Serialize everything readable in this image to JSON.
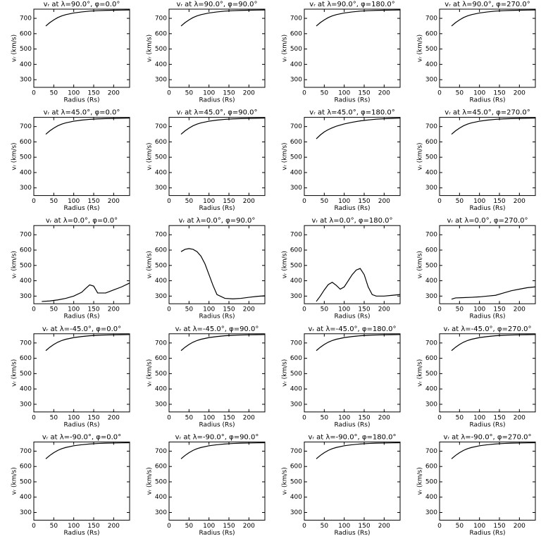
{
  "chart_data": [
    {
      "type": "line",
      "title": "vᵣ at λ=90.0°, φ=0.0°",
      "xlabel": "Radius (Rs)",
      "ylabel": "vᵣ (km/s)",
      "xlim": [
        0,
        240
      ],
      "ylim": [
        250,
        760
      ],
      "xticks": [
        0,
        50,
        100,
        150,
        200
      ],
      "yticks": [
        300,
        400,
        500,
        600,
        700
      ],
      "color": "#000000",
      "x": [
        30,
        40,
        50,
        60,
        70,
        80,
        100,
        120,
        140,
        160,
        180,
        200,
        220,
        240
      ],
      "values": [
        650,
        672,
        690,
        705,
        716,
        724,
        735,
        742,
        747,
        750,
        752,
        753,
        754,
        755
      ]
    },
    {
      "type": "line",
      "title": "vᵣ at λ=90.0°, φ=90.0°",
      "xlabel": "Radius (Rs)",
      "ylabel": "vᵣ (km/s)",
      "xlim": [
        0,
        240
      ],
      "ylim": [
        250,
        760
      ],
      "xticks": [
        0,
        50,
        100,
        150,
        200
      ],
      "yticks": [
        300,
        400,
        500,
        600,
        700
      ],
      "color": "#000000",
      "x": [
        30,
        40,
        50,
        60,
        70,
        80,
        100,
        120,
        140,
        160,
        180,
        200,
        220,
        240
      ],
      "values": [
        650,
        672,
        690,
        705,
        716,
        724,
        735,
        742,
        747,
        750,
        752,
        753,
        754,
        755
      ]
    },
    {
      "type": "line",
      "title": "vᵣ at λ=90.0°, φ=180.0°",
      "xlabel": "Radius (Rs)",
      "ylabel": "vᵣ (km/s)",
      "xlim": [
        0,
        240
      ],
      "ylim": [
        250,
        760
      ],
      "xticks": [
        0,
        50,
        100,
        150,
        200
      ],
      "yticks": [
        300,
        400,
        500,
        600,
        700
      ],
      "color": "#000000",
      "x": [
        30,
        40,
        50,
        60,
        70,
        80,
        100,
        120,
        140,
        160,
        180,
        200,
        220,
        240
      ],
      "values": [
        650,
        672,
        690,
        705,
        716,
        724,
        735,
        742,
        747,
        750,
        752,
        753,
        754,
        755
      ]
    },
    {
      "type": "line",
      "title": "vᵣ at λ=90.0°, φ=270.0°",
      "xlabel": "Radius (Rs)",
      "ylabel": "vᵣ (km/s)",
      "xlim": [
        0,
        240
      ],
      "ylim": [
        250,
        760
      ],
      "xticks": [
        0,
        50,
        100,
        150,
        200
      ],
      "yticks": [
        300,
        400,
        500,
        600,
        700
      ],
      "color": "#000000",
      "x": [
        30,
        40,
        50,
        60,
        70,
        80,
        100,
        120,
        140,
        160,
        180,
        200,
        220,
        240
      ],
      "values": [
        650,
        672,
        690,
        705,
        716,
        724,
        735,
        742,
        747,
        750,
        752,
        753,
        754,
        755
      ]
    },
    {
      "type": "line",
      "title": "vᵣ at λ=45.0°, φ=0.0°",
      "xlabel": "Radius (Rs)",
      "ylabel": "vᵣ (km/s)",
      "xlim": [
        0,
        240
      ],
      "ylim": [
        250,
        760
      ],
      "xticks": [
        0,
        50,
        100,
        150,
        200
      ],
      "yticks": [
        300,
        400,
        500,
        600,
        700
      ],
      "color": "#000000",
      "x": [
        30,
        40,
        50,
        60,
        70,
        80,
        100,
        120,
        140,
        160,
        180,
        200,
        220,
        240
      ],
      "values": [
        650,
        672,
        690,
        705,
        716,
        724,
        735,
        742,
        747,
        750,
        752,
        753,
        754,
        755
      ]
    },
    {
      "type": "line",
      "title": "vᵣ at λ=45.0°, φ=90.0°",
      "xlabel": "Radius (Rs)",
      "ylabel": "vᵣ (km/s)",
      "xlim": [
        0,
        240
      ],
      "ylim": [
        250,
        760
      ],
      "xticks": [
        0,
        50,
        100,
        150,
        200
      ],
      "yticks": [
        300,
        400,
        500,
        600,
        700
      ],
      "color": "#000000",
      "x": [
        30,
        40,
        50,
        60,
        70,
        80,
        100,
        120,
        140,
        160,
        180,
        200,
        220,
        240
      ],
      "values": [
        650,
        672,
        690,
        705,
        716,
        724,
        735,
        742,
        747,
        750,
        752,
        753,
        754,
        755
      ]
    },
    {
      "type": "line",
      "title": "vᵣ at λ=45.0°, φ=180.0°",
      "xlabel": "Radius (Rs)",
      "ylabel": "vᵣ (km/s)",
      "xlim": [
        0,
        240
      ],
      "ylim": [
        250,
        760
      ],
      "xticks": [
        0,
        50,
        100,
        150,
        200
      ],
      "yticks": [
        300,
        400,
        500,
        600,
        700
      ],
      "color": "#000000",
      "x": [
        30,
        40,
        50,
        60,
        70,
        80,
        100,
        120,
        140,
        160,
        180,
        200,
        220,
        240
      ],
      "values": [
        620,
        645,
        665,
        680,
        692,
        702,
        717,
        728,
        737,
        743,
        748,
        751,
        753,
        755
      ]
    },
    {
      "type": "line",
      "title": "vᵣ at λ=45.0°, φ=270.0°",
      "xlabel": "Radius (Rs)",
      "ylabel": "vᵣ (km/s)",
      "xlim": [
        0,
        240
      ],
      "ylim": [
        250,
        760
      ],
      "xticks": [
        0,
        50,
        100,
        150,
        200
      ],
      "yticks": [
        300,
        400,
        500,
        600,
        700
      ],
      "color": "#000000",
      "x": [
        30,
        40,
        50,
        60,
        70,
        80,
        100,
        120,
        140,
        160,
        180,
        200,
        220,
        240
      ],
      "values": [
        650,
        672,
        690,
        705,
        716,
        724,
        735,
        742,
        747,
        750,
        752,
        753,
        754,
        755
      ]
    },
    {
      "type": "line",
      "title": "vᵣ at λ=0.0°, φ=0.0°",
      "xlabel": "Radius (Rs)",
      "ylabel": "vᵣ (km/s)",
      "xlim": [
        0,
        240
      ],
      "ylim": [
        250,
        760
      ],
      "xticks": [
        0,
        50,
        100,
        150,
        200
      ],
      "yticks": [
        300,
        400,
        500,
        600,
        700
      ],
      "color": "#000000",
      "x": [
        20,
        40,
        60,
        80,
        100,
        120,
        130,
        140,
        150,
        160,
        180,
        200,
        220,
        240
      ],
      "values": [
        265,
        268,
        275,
        285,
        300,
        325,
        350,
        373,
        365,
        320,
        320,
        340,
        360,
        385
      ]
    },
    {
      "type": "line",
      "title": "vᵣ at λ=0.0°, φ=90.0°",
      "xlabel": "Radius (Rs)",
      "ylabel": "vᵣ (km/s)",
      "xlim": [
        0,
        240
      ],
      "ylim": [
        250,
        760
      ],
      "xticks": [
        0,
        50,
        100,
        150,
        200
      ],
      "yticks": [
        300,
        400,
        500,
        600,
        700
      ],
      "color": "#000000",
      "x": [
        30,
        40,
        50,
        60,
        70,
        80,
        90,
        100,
        110,
        120,
        140,
        160,
        180,
        200,
        220,
        240
      ],
      "values": [
        590,
        605,
        610,
        605,
        590,
        560,
        510,
        440,
        370,
        310,
        285,
        282,
        285,
        292,
        298,
        302
      ]
    },
    {
      "type": "line",
      "title": "vᵣ at λ=0.0°, φ=180.0°",
      "xlabel": "Radius (Rs)",
      "ylabel": "vᵣ (km/s)",
      "xlim": [
        0,
        240
      ],
      "ylim": [
        250,
        760
      ],
      "xticks": [
        0,
        50,
        100,
        150,
        200
      ],
      "yticks": [
        300,
        400,
        500,
        600,
        700
      ],
      "color": "#000000",
      "x": [
        30,
        40,
        50,
        60,
        70,
        80,
        90,
        100,
        110,
        120,
        130,
        140,
        150,
        160,
        170,
        180,
        200,
        220,
        240
      ],
      "values": [
        265,
        300,
        340,
        375,
        390,
        370,
        345,
        360,
        400,
        440,
        470,
        480,
        440,
        360,
        310,
        300,
        300,
        305,
        310
      ]
    },
    {
      "type": "line",
      "title": "vᵣ at λ=0.0°, φ=270.0°",
      "xlabel": "Radius (Rs)",
      "ylabel": "vᵣ (km/s)",
      "xlim": [
        0,
        240
      ],
      "ylim": [
        250,
        760
      ],
      "xticks": [
        0,
        50,
        100,
        150,
        200
      ],
      "yticks": [
        300,
        400,
        500,
        600,
        700
      ],
      "color": "#000000",
      "x": [
        30,
        40,
        60,
        80,
        100,
        120,
        140,
        160,
        180,
        200,
        220,
        240
      ],
      "values": [
        280,
        288,
        290,
        292,
        295,
        300,
        305,
        320,
        335,
        345,
        355,
        360
      ]
    },
    {
      "type": "line",
      "title": "vᵣ at λ=-45.0°, φ=0.0°",
      "xlabel": "Radius (Rs)",
      "ylabel": "vᵣ (km/s)",
      "xlim": [
        0,
        240
      ],
      "ylim": [
        250,
        760
      ],
      "xticks": [
        0,
        50,
        100,
        150,
        200
      ],
      "yticks": [
        300,
        400,
        500,
        600,
        700
      ],
      "color": "#000000",
      "x": [
        30,
        40,
        50,
        60,
        70,
        80,
        100,
        120,
        140,
        160,
        180,
        200,
        220,
        240
      ],
      "values": [
        650,
        672,
        690,
        705,
        716,
        724,
        735,
        742,
        747,
        750,
        752,
        753,
        754,
        755
      ]
    },
    {
      "type": "line",
      "title": "vᵣ at λ=-45.0°, φ=90.0°",
      "xlabel": "Radius (Rs)",
      "ylabel": "vᵣ (km/s)",
      "xlim": [
        0,
        240
      ],
      "ylim": [
        250,
        760
      ],
      "xticks": [
        0,
        50,
        100,
        150,
        200
      ],
      "yticks": [
        300,
        400,
        500,
        600,
        700
      ],
      "color": "#000000",
      "x": [
        30,
        40,
        50,
        60,
        70,
        80,
        100,
        120,
        140,
        160,
        180,
        200,
        220,
        240
      ],
      "values": [
        650,
        672,
        690,
        705,
        716,
        724,
        735,
        742,
        747,
        750,
        752,
        753,
        754,
        755
      ]
    },
    {
      "type": "line",
      "title": "vᵣ at λ=-45.0°, φ=180.0°",
      "xlabel": "Radius (Rs)",
      "ylabel": "vᵣ (km/s)",
      "xlim": [
        0,
        240
      ],
      "ylim": [
        250,
        760
      ],
      "xticks": [
        0,
        50,
        100,
        150,
        200
      ],
      "yticks": [
        300,
        400,
        500,
        600,
        700
      ],
      "color": "#000000",
      "x": [
        30,
        40,
        50,
        60,
        70,
        80,
        100,
        120,
        140,
        160,
        180,
        200,
        220,
        240
      ],
      "values": [
        650,
        672,
        690,
        705,
        716,
        724,
        735,
        742,
        747,
        750,
        752,
        753,
        754,
        755
      ]
    },
    {
      "type": "line",
      "title": "vᵣ at λ=-45.0°, φ=270.0°",
      "xlabel": "Radius (Rs)",
      "ylabel": "vᵣ (km/s)",
      "xlim": [
        0,
        240
      ],
      "ylim": [
        250,
        760
      ],
      "xticks": [
        0,
        50,
        100,
        150,
        200
      ],
      "yticks": [
        300,
        400,
        500,
        600,
        700
      ],
      "color": "#000000",
      "x": [
        30,
        40,
        50,
        60,
        70,
        80,
        100,
        120,
        140,
        160,
        180,
        200,
        220,
        240
      ],
      "values": [
        650,
        672,
        690,
        705,
        716,
        724,
        735,
        742,
        747,
        750,
        752,
        753,
        754,
        755
      ]
    },
    {
      "type": "line",
      "title": "vᵣ at λ=-90.0°, φ=0.0°",
      "xlabel": "Radius (Rs)",
      "ylabel": "vᵣ (km/s)",
      "xlim": [
        0,
        240
      ],
      "ylim": [
        250,
        760
      ],
      "xticks": [
        0,
        50,
        100,
        150,
        200
      ],
      "yticks": [
        300,
        400,
        500,
        600,
        700
      ],
      "color": "#000000",
      "x": [
        30,
        40,
        50,
        60,
        70,
        80,
        100,
        120,
        140,
        160,
        180,
        200,
        220,
        240
      ],
      "values": [
        650,
        672,
        690,
        705,
        716,
        724,
        735,
        742,
        747,
        750,
        752,
        753,
        754,
        755
      ]
    },
    {
      "type": "line",
      "title": "vᵣ at λ=-90.0°, φ=90.0°",
      "xlabel": "Radius (Rs)",
      "ylabel": "vᵣ (km/s)",
      "xlim": [
        0,
        240
      ],
      "ylim": [
        250,
        760
      ],
      "xticks": [
        0,
        50,
        100,
        150,
        200
      ],
      "yticks": [
        300,
        400,
        500,
        600,
        700
      ],
      "color": "#000000",
      "x": [
        30,
        40,
        50,
        60,
        70,
        80,
        100,
        120,
        140,
        160,
        180,
        200,
        220,
        240
      ],
      "values": [
        650,
        672,
        690,
        705,
        716,
        724,
        735,
        742,
        747,
        750,
        752,
        753,
        754,
        755
      ]
    },
    {
      "type": "line",
      "title": "vᵣ at λ=-90.0°, φ=180.0°",
      "xlabel": "Radius (Rs)",
      "ylabel": "vᵣ (km/s)",
      "xlim": [
        0,
        240
      ],
      "ylim": [
        250,
        760
      ],
      "xticks": [
        0,
        50,
        100,
        150,
        200
      ],
      "yticks": [
        300,
        400,
        500,
        600,
        700
      ],
      "color": "#000000",
      "x": [
        30,
        40,
        50,
        60,
        70,
        80,
        100,
        120,
        140,
        160,
        180,
        200,
        220,
        240
      ],
      "values": [
        650,
        672,
        690,
        705,
        716,
        724,
        735,
        742,
        747,
        750,
        752,
        753,
        754,
        755
      ]
    },
    {
      "type": "line",
      "title": "vᵣ at λ=-90.0°, φ=270.0°",
      "xlabel": "Radius (Rs)",
      "ylabel": "vᵣ (km/s)",
      "xlim": [
        0,
        240
      ],
      "ylim": [
        250,
        760
      ],
      "xticks": [
        0,
        50,
        100,
        150,
        200
      ],
      "yticks": [
        300,
        400,
        500,
        600,
        700
      ],
      "color": "#000000",
      "x": [
        30,
        40,
        50,
        60,
        70,
        80,
        100,
        120,
        140,
        160,
        180,
        200,
        220,
        240
      ],
      "values": [
        650,
        672,
        690,
        705,
        716,
        724,
        735,
        742,
        747,
        750,
        752,
        753,
        754,
        755
      ]
    }
  ]
}
